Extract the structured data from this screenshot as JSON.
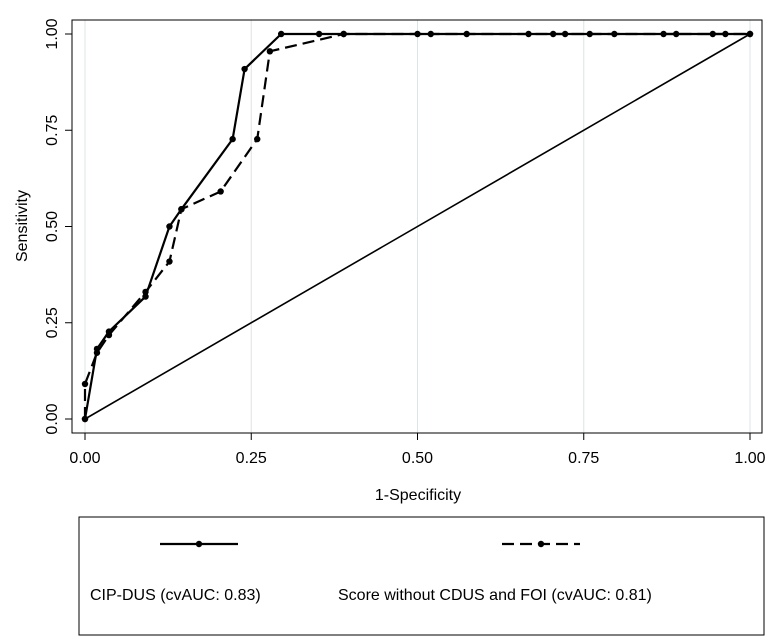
{
  "chart_data": {
    "type": "line",
    "title": "",
    "xlabel": "1-Specificity",
    "ylabel": "Sensitivity",
    "xlim": [
      0,
      1
    ],
    "ylim": [
      0,
      1
    ],
    "x_ticks": [
      "0.00",
      "0.25",
      "0.50",
      "0.75",
      "1.00"
    ],
    "y_ticks": [
      "0.00",
      "0.25",
      "0.50",
      "0.75",
      "1.00"
    ],
    "grid": "vertical",
    "legend_placement": "bottom",
    "series": [
      {
        "name": "CIP-DUS (cvAUC: 0.83)",
        "style": "solid",
        "color": "#000000",
        "x": [
          0,
          0.018,
          0.036,
          0.091,
          0.127,
          0.145,
          0.222,
          0.24,
          0.295,
          0.352,
          0.389,
          0.5,
          0.52,
          0.574,
          0.667,
          0.704,
          0.722,
          0.759,
          0.796,
          0.87,
          0.889,
          0.944,
          0.963,
          1.0
        ],
        "y": [
          0,
          0.182,
          0.227,
          0.318,
          0.5,
          0.545,
          0.727,
          0.909,
          1,
          1,
          1,
          1,
          1,
          1,
          1,
          1,
          1,
          1,
          1,
          1,
          1,
          1,
          1,
          1
        ]
      },
      {
        "name": "Score without CDUS and FOI (cvAUC: 0.81)",
        "style": "dashed",
        "color": "#000000",
        "x": [
          0,
          0,
          0.018,
          0.036,
          0.091,
          0.127,
          0.145,
          0.204,
          0.259,
          0.278,
          0.389,
          1.0
        ],
        "y": [
          0,
          0.091,
          0.172,
          0.218,
          0.33,
          0.409,
          0.545,
          0.591,
          0.727,
          0.955,
          1,
          1
        ]
      },
      {
        "name": "",
        "style": "reference",
        "color": "#000000",
        "x": [
          0,
          1
        ],
        "y": [
          0,
          1
        ]
      }
    ]
  }
}
